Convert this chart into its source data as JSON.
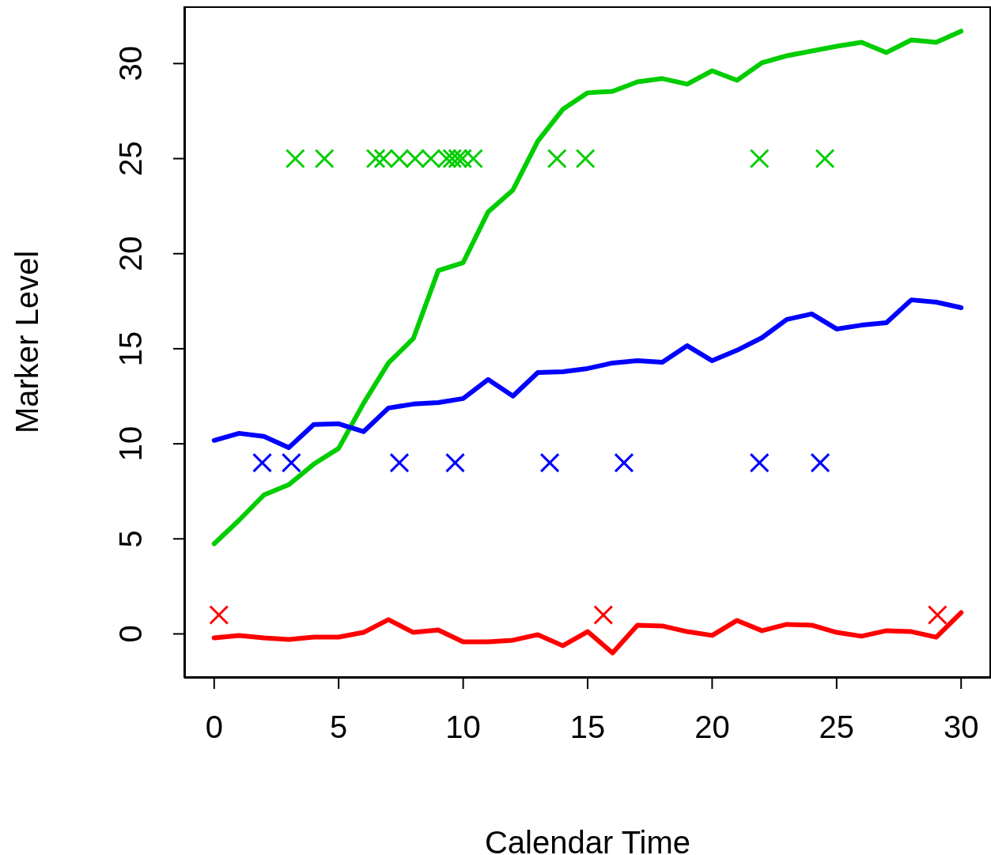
{
  "chart_data": {
    "type": "line",
    "xlabel": "Calendar Time",
    "ylabel": "Marker Level",
    "xlim": [
      -1.2,
      31.2
    ],
    "xticks": [
      0,
      5,
      10,
      15,
      20,
      25,
      30
    ],
    "ylim": [
      -2.31,
      33.01
    ],
    "yticks": [
      0,
      5,
      10,
      15,
      20,
      25,
      30
    ],
    "grid": false,
    "line_style": "solid",
    "marker": "none",
    "x": [
      0,
      1,
      2,
      3,
      4,
      5,
      6,
      7,
      8,
      9,
      10,
      11,
      12,
      13,
      14,
      15,
      16,
      17,
      18,
      19,
      20,
      21,
      22,
      23,
      24,
      25,
      26,
      27,
      28,
      29,
      30
    ],
    "series": [
      {
        "color": "#00cd00",
        "values": [
          4.74,
          5.98,
          7.31,
          7.85,
          8.93,
          9.76,
          12.13,
          14.25,
          15.54,
          19.11,
          19.53,
          22.19,
          23.35,
          25.92,
          27.59,
          28.46,
          28.54,
          29.04,
          29.21,
          28.92,
          29.62,
          29.12,
          30.04,
          30.41,
          30.66,
          30.91,
          31.12,
          30.58,
          31.24,
          31.12,
          31.7
        ]
      },
      {
        "color": "#0000ff",
        "values": [
          10.18,
          10.55,
          10.39,
          9.8,
          11.01,
          11.05,
          10.64,
          11.88,
          12.09,
          12.17,
          12.38,
          13.38,
          12.51,
          13.75,
          13.79,
          13.96,
          14.25,
          14.37,
          14.29,
          15.16,
          14.37,
          14.92,
          15.58,
          16.54,
          16.83,
          16.04,
          16.24,
          16.37,
          17.57,
          17.45,
          17.16
        ]
      },
      {
        "color": "#ff0000",
        "values": [
          -0.21,
          -0.08,
          -0.21,
          -0.29,
          -0.17,
          -0.17,
          0.08,
          0.75,
          0.08,
          0.21,
          -0.42,
          -0.42,
          -0.33,
          -0.04,
          -0.62,
          0.12,
          -1.0,
          0.46,
          0.42,
          0.12,
          -0.08,
          0.71,
          0.17,
          0.5,
          0.46,
          0.08,
          -0.12,
          0.17,
          0.12,
          -0.17,
          1.12
        ]
      },
      {
        "type": "scatter",
        "marker": "cross",
        "color": "#00cd00",
        "x": [
          3.26,
          4.43,
          6.49,
          6.8,
          7.44,
          8.07,
          8.7,
          9.34,
          9.56,
          9.78,
          9.97,
          10.41,
          13.77,
          14.91,
          21.9,
          24.53
        ],
        "values": [
          25,
          25,
          25,
          25,
          25,
          25,
          25,
          25,
          25,
          25,
          25,
          25,
          25,
          25,
          25,
          25
        ]
      },
      {
        "type": "scatter",
        "marker": "cross",
        "color": "#0000ff",
        "x": [
          1.93,
          3.1,
          7.44,
          9.68,
          13.48,
          16.46,
          21.9,
          24.34
        ],
        "values": [
          9,
          9,
          9,
          9,
          9,
          9,
          9,
          9
        ]
      },
      {
        "type": "scatter",
        "marker": "cross",
        "color": "#ff0000",
        "x": [
          0.19,
          15.63,
          29.05
        ],
        "values": [
          1,
          1,
          1
        ]
      }
    ]
  }
}
